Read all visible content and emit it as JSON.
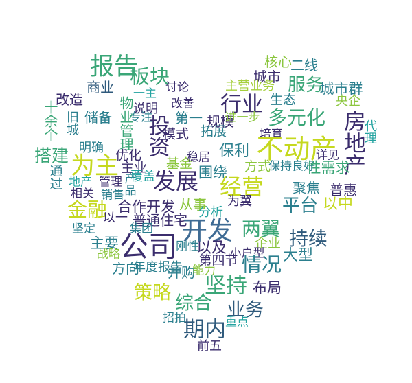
{
  "palette": {
    "navy": "#3b2d6d",
    "indigo": "#472f7d",
    "blue": "#3e6b94",
    "teal": "#2b7f8e",
    "green": "#3aa677",
    "lime": "#8cc63f",
    "yellow": "#c5d81e",
    "pale": "#a5cf3c",
    "slate": "#2f5a7c",
    "cyan": "#23a3a0"
  },
  "words": [
    {
      "text": "报告",
      "weight": 0.78,
      "color": "green"
    },
    {
      "text": "板块",
      "weight": 0.55,
      "color": "green"
    },
    {
      "text": "商业",
      "weight": 0.25,
      "color": "slate"
    },
    {
      "text": "改造",
      "weight": 0.28,
      "color": "navy"
    },
    {
      "text": "储备",
      "weight": 0.28,
      "color": "teal"
    },
    {
      "text": "物业管理",
      "weight": 0.28,
      "color": "green",
      "vertical": true
    },
    {
      "text": "十余个",
      "weight": 0.26,
      "color": "green",
      "vertical": true
    },
    {
      "text": "旧城",
      "weight": 0.2,
      "color": "teal",
      "vertical": true
    },
    {
      "text": "说明",
      "weight": 0.2,
      "color": "navy"
    },
    {
      "text": "一主",
      "weight": 0.16,
      "color": "cyan"
    },
    {
      "text": "专注",
      "weight": 0.15,
      "color": "teal"
    },
    {
      "text": "投资",
      "weight": 0.62,
      "color": "navy",
      "vertical": true
    },
    {
      "text": "讨论",
      "weight": 0.15,
      "color": "navy"
    },
    {
      "text": "改善",
      "weight": 0.15,
      "color": "navy"
    },
    {
      "text": "第一",
      "weight": 0.28,
      "color": "teal"
    },
    {
      "text": "行业",
      "weight": 0.62,
      "color": "navy"
    },
    {
      "text": "规模",
      "weight": 0.25,
      "color": "navy"
    },
    {
      "text": "进一步",
      "weight": 0.16,
      "color": "lime"
    },
    {
      "text": "拓展",
      "weight": 0.22,
      "color": "teal"
    },
    {
      "text": "模式",
      "weight": 0.22,
      "color": "navy"
    },
    {
      "text": "核心",
      "weight": 0.26,
      "color": "lime"
    },
    {
      "text": "二线",
      "weight": 0.26,
      "color": "teal"
    },
    {
      "text": "城市",
      "weight": 0.26,
      "color": "navy"
    },
    {
      "text": "主营业务",
      "weight": 0.2,
      "color": "pale"
    },
    {
      "text": "服务",
      "weight": 0.45,
      "color": "green"
    },
    {
      "text": "城市群",
      "weight": 0.3,
      "color": "teal"
    },
    {
      "text": "生态",
      "weight": 0.24,
      "color": "teal"
    },
    {
      "text": "央企",
      "weight": 0.2,
      "color": "lime"
    },
    {
      "text": "多元化",
      "weight": 0.52,
      "color": "green"
    },
    {
      "text": "房地产",
      "weight": 0.68,
      "color": "navy",
      "vertical": true
    },
    {
      "text": "代理",
      "weight": 0.2,
      "color": "cyan",
      "vertical": true
    },
    {
      "text": "培育",
      "weight": 0.18,
      "color": "navy"
    },
    {
      "text": "不动产",
      "weight": 0.9,
      "color": "yellow"
    },
    {
      "text": "保利",
      "weight": 0.34,
      "color": "teal"
    },
    {
      "text": "搭建",
      "weight": 0.42,
      "color": "green"
    },
    {
      "text": "明确",
      "weight": 0.2,
      "color": "teal"
    },
    {
      "text": "通过",
      "weight": 0.24,
      "color": "teal",
      "vertical": true
    },
    {
      "text": "为主",
      "weight": 0.78,
      "color": "yellow"
    },
    {
      "text": "优化",
      "weight": 0.22,
      "color": "navy"
    },
    {
      "text": "主业",
      "weight": 0.24,
      "color": "navy"
    },
    {
      "text": "基金",
      "weight": 0.24,
      "color": "lime"
    },
    {
      "text": "稳居",
      "weight": 0.18,
      "color": "navy"
    },
    {
      "text": "方式",
      "weight": 0.24,
      "color": "lime"
    },
    {
      "text": "保持良好",
      "weight": 0.18,
      "color": "teal"
    },
    {
      "text": "详见",
      "weight": 0.18,
      "color": "navy"
    },
    {
      "text": "性需求",
      "weight": 0.3,
      "color": "green"
    },
    {
      "text": "地产",
      "weight": 0.16,
      "color": "cyan"
    },
    {
      "text": "管理",
      "weight": 0.16,
      "color": "navy"
    },
    {
      "text": "产品",
      "weight": 0.18,
      "color": "teal",
      "vertical": true
    },
    {
      "text": "覆盖",
      "weight": 0.2,
      "color": "cyan"
    },
    {
      "text": "发展",
      "weight": 0.7,
      "color": "navy"
    },
    {
      "text": "围绕",
      "weight": 0.3,
      "color": "teal"
    },
    {
      "text": "经营",
      "weight": 0.66,
      "color": "yellow"
    },
    {
      "text": "聚焦",
      "weight": 0.28,
      "color": "teal"
    },
    {
      "text": "普惠",
      "weight": 0.28,
      "color": "navy"
    },
    {
      "text": "相关",
      "weight": 0.16,
      "color": "navy"
    },
    {
      "text": "销售",
      "weight": 0.16,
      "color": "teal"
    },
    {
      "text": "金融",
      "weight": 0.58,
      "color": "yellow"
    },
    {
      "text": "合作开发",
      "weight": 0.3,
      "color": "navy"
    },
    {
      "text": "从事",
      "weight": 0.26,
      "color": "lime"
    },
    {
      "text": "为翼",
      "weight": 0.2,
      "color": "navy"
    },
    {
      "text": "平台",
      "weight": 0.48,
      "color": "teal"
    },
    {
      "text": "以中",
      "weight": 0.34,
      "color": "yellow"
    },
    {
      "text": "以一",
      "weight": 0.2,
      "color": "navy"
    },
    {
      "text": "分析",
      "weight": 0.2,
      "color": "cyan"
    },
    {
      "text": "普通住宅",
      "weight": 0.26,
      "color": "navy"
    },
    {
      "text": "坚定",
      "weight": 0.18,
      "color": "teal"
    },
    {
      "text": "集团",
      "weight": 0.18,
      "color": "teal"
    },
    {
      "text": "开发",
      "weight": 0.82,
      "color": "blue"
    },
    {
      "text": "两翼",
      "weight": 0.52,
      "color": "green"
    },
    {
      "text": "持续",
      "weight": 0.52,
      "color": "slate"
    },
    {
      "text": "主要",
      "weight": 0.3,
      "color": "teal"
    },
    {
      "text": "公司",
      "weight": 1.0,
      "color": "navy"
    },
    {
      "text": "刚性",
      "weight": 0.18,
      "color": "teal"
    },
    {
      "text": "以及",
      "weight": 0.34,
      "color": "navy"
    },
    {
      "text": "企业",
      "weight": 0.24,
      "color": "lime"
    },
    {
      "text": "战略",
      "weight": 0.18,
      "color": "lime"
    },
    {
      "text": "小户型",
      "weight": 0.16,
      "color": "navy"
    },
    {
      "text": "第四节",
      "weight": 0.22,
      "color": "navy"
    },
    {
      "text": "情况",
      "weight": 0.56,
      "color": "teal"
    },
    {
      "text": "大型",
      "weight": 0.32,
      "color": "teal"
    },
    {
      "text": "方向",
      "weight": 0.26,
      "color": "teal"
    },
    {
      "text": "年度报告",
      "weight": 0.2,
      "color": "teal"
    },
    {
      "text": "并购",
      "weight": 0.28,
      "color": "teal"
    },
    {
      "text": "能力",
      "weight": 0.18,
      "color": "lime"
    },
    {
      "text": "坚持",
      "weight": 0.62,
      "color": "green"
    },
    {
      "text": "布局",
      "weight": 0.3,
      "color": "navy"
    },
    {
      "text": "策略",
      "weight": 0.5,
      "color": "yellow"
    },
    {
      "text": "综合",
      "weight": 0.5,
      "color": "green"
    },
    {
      "text": "业务",
      "weight": 0.5,
      "color": "slate"
    },
    {
      "text": "招拍",
      "weight": 0.16,
      "color": "teal"
    },
    {
      "text": "期内",
      "weight": 0.62,
      "color": "slate"
    },
    {
      "text": "重点",
      "weight": 0.18,
      "color": "cyan"
    },
    {
      "text": "前五",
      "weight": 0.2,
      "color": "navy"
    }
  ]
}
